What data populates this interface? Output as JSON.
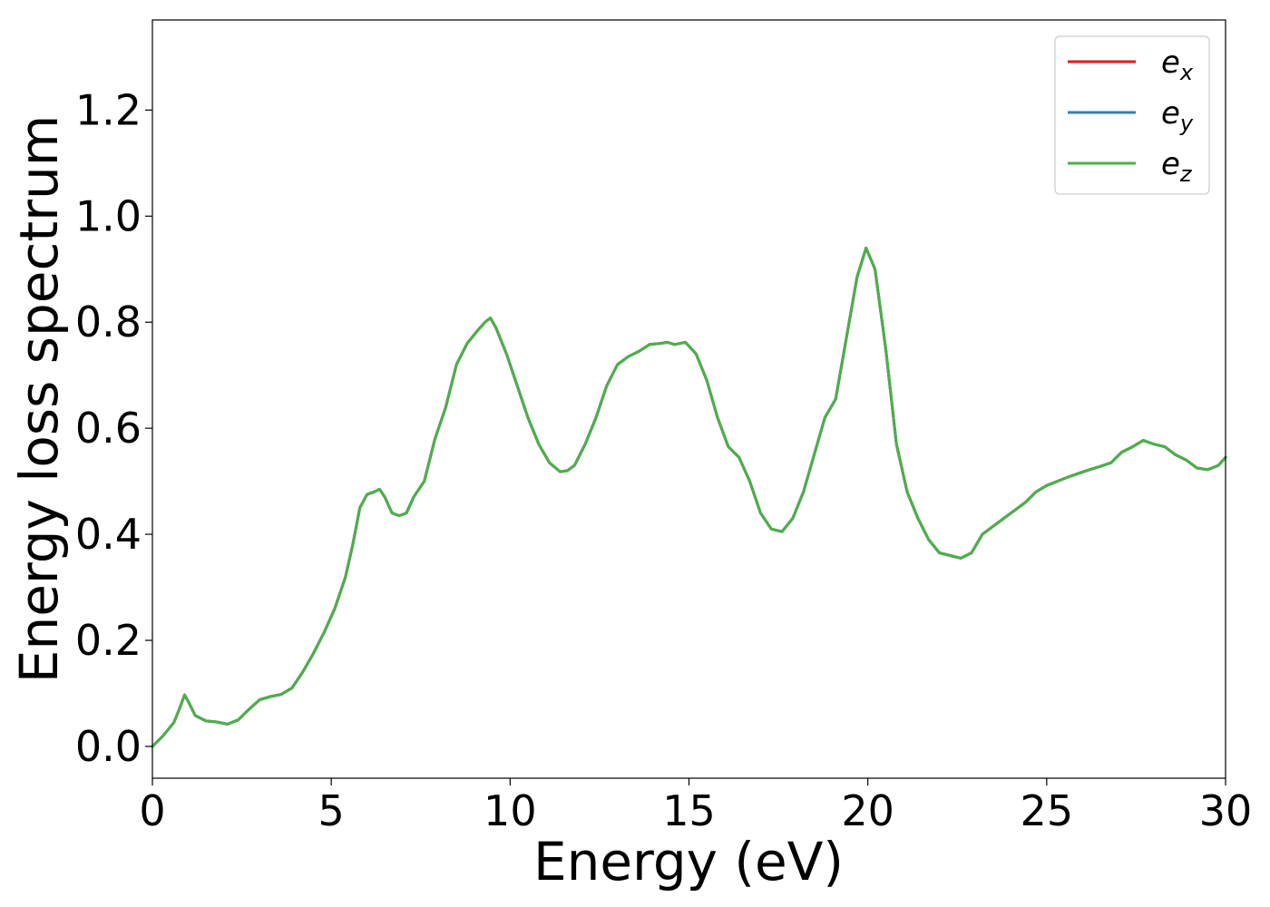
{
  "chart_data": {
    "type": "line",
    "title": "",
    "xlabel": "Energy (eV)",
    "ylabel": "Energy loss spectrum",
    "xlim": [
      0,
      30
    ],
    "ylim": [
      -0.06,
      1.37
    ],
    "xticks": [
      0,
      5,
      10,
      15,
      20,
      25,
      30
    ],
    "xtick_labels": [
      "0",
      "5",
      "10",
      "15",
      "20",
      "25",
      "30"
    ],
    "yticks": [
      0.0,
      0.2,
      0.4,
      0.6,
      0.8,
      1.0,
      1.2
    ],
    "ytick_labels": [
      "0.0",
      "0.2",
      "0.4",
      "0.6",
      "0.8",
      "1.0",
      "1.2"
    ],
    "grid": false,
    "legend_position": "top-right",
    "x": [
      0.0,
      0.3,
      0.6,
      0.75,
      0.9,
      1.0,
      1.2,
      1.5,
      1.8,
      2.1,
      2.4,
      2.7,
      3.0,
      3.3,
      3.6,
      3.9,
      4.2,
      4.5,
      4.8,
      5.1,
      5.4,
      5.6,
      5.8,
      6.0,
      6.2,
      6.35,
      6.5,
      6.7,
      6.9,
      7.1,
      7.3,
      7.6,
      7.9,
      8.2,
      8.5,
      8.8,
      9.1,
      9.3,
      9.45,
      9.6,
      9.9,
      10.2,
      10.5,
      10.8,
      11.1,
      11.4,
      11.6,
      11.8,
      12.1,
      12.4,
      12.7,
      13.0,
      13.3,
      13.6,
      13.9,
      14.2,
      14.4,
      14.6,
      14.9,
      15.2,
      15.5,
      15.8,
      16.1,
      16.4,
      16.7,
      17.0,
      17.3,
      17.6,
      17.9,
      18.2,
      18.5,
      18.8,
      19.1,
      19.4,
      19.7,
      19.95,
      20.2,
      20.5,
      20.8,
      21.1,
      21.4,
      21.7,
      22.0,
      22.3,
      22.6,
      22.9,
      23.2,
      23.5,
      23.8,
      24.1,
      24.4,
      24.7,
      25.0,
      25.3,
      25.6,
      25.9,
      26.2,
      26.5,
      26.8,
      27.1,
      27.4,
      27.7,
      28.0,
      28.3,
      28.6,
      28.9,
      29.2,
      29.5,
      29.8,
      30.0
    ],
    "y": [
      0.0,
      0.02,
      0.045,
      0.07,
      0.097,
      0.085,
      0.058,
      0.048,
      0.046,
      0.042,
      0.05,
      0.07,
      0.088,
      0.094,
      0.098,
      0.11,
      0.14,
      0.175,
      0.215,
      0.26,
      0.32,
      0.38,
      0.45,
      0.475,
      0.48,
      0.485,
      0.47,
      0.44,
      0.435,
      0.44,
      0.47,
      0.5,
      0.58,
      0.64,
      0.72,
      0.76,
      0.785,
      0.8,
      0.808,
      0.79,
      0.74,
      0.68,
      0.62,
      0.57,
      0.535,
      0.518,
      0.52,
      0.53,
      0.57,
      0.62,
      0.68,
      0.72,
      0.735,
      0.745,
      0.758,
      0.76,
      0.762,
      0.758,
      0.762,
      0.74,
      0.69,
      0.62,
      0.565,
      0.545,
      0.5,
      0.44,
      0.41,
      0.405,
      0.43,
      0.48,
      0.55,
      0.62,
      0.655,
      0.77,
      0.885,
      0.94,
      0.9,
      0.75,
      0.57,
      0.48,
      0.43,
      0.39,
      0.365,
      0.36,
      0.355,
      0.365,
      0.4,
      0.415,
      0.43,
      0.445,
      0.46,
      0.48,
      0.492,
      0.5,
      0.508,
      0.515,
      0.522,
      0.528,
      0.535,
      0.555,
      0.565,
      0.577,
      0.57,
      0.565,
      0.55,
      0.54,
      0.525,
      0.522,
      0.53,
      0.545
    ],
    "series": [
      {
        "name": "e_x",
        "label_base": "e",
        "label_sub": "x",
        "color": "#e41a1c"
      },
      {
        "name": "e_y",
        "label_base": "e",
        "label_sub": "y",
        "color": "#377eb8"
      },
      {
        "name": "e_z",
        "label_base": "e",
        "label_sub": "z",
        "color": "#4daf4a"
      }
    ]
  }
}
